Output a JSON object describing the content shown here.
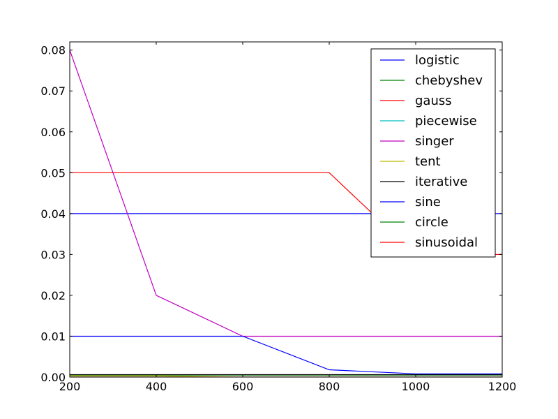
{
  "chart_data": {
    "type": "line",
    "title": "",
    "xlabel": "",
    "ylabel": "",
    "xlim": [
      200,
      1200
    ],
    "ylim": [
      0.0,
      0.082
    ],
    "x_ticks": [
      200,
      400,
      600,
      800,
      1000,
      1200
    ],
    "x_tick_labels": [
      "200",
      "400",
      "600",
      "800",
      "1000",
      "1200"
    ],
    "y_ticks": [
      0.0,
      0.01,
      0.02,
      0.03,
      0.04,
      0.05,
      0.06,
      0.07,
      0.08
    ],
    "y_tick_labels": [
      "0.00",
      "0.01",
      "0.02",
      "0.03",
      "0.04",
      "0.05",
      "0.06",
      "0.07",
      "0.08"
    ],
    "grid": false,
    "legend_position": "top-right",
    "x": [
      200,
      400,
      600,
      800,
      1000,
      1200
    ],
    "series": [
      {
        "name": "logistic",
        "color": "#0000ff",
        "values": [
          0.04,
          0.04,
          0.04,
          0.04,
          0.04,
          0.04
        ]
      },
      {
        "name": "chebyshev",
        "color": "#008000",
        "values": [
          0.0005,
          0.0005,
          0.0005,
          0.0005,
          0.0005,
          0.0005
        ]
      },
      {
        "name": "gauss",
        "color": "#ff0000",
        "values": [
          0.05,
          0.05,
          0.05,
          0.05,
          0.03,
          0.03
        ]
      },
      {
        "name": "piecewise",
        "color": "#00bfbf",
        "values": [
          0.0,
          0.0,
          0.0,
          0.0,
          0.0,
          0.0
        ]
      },
      {
        "name": "singer",
        "color": "#bf00bf",
        "values": [
          0.08,
          0.02,
          0.01,
          0.01,
          0.01,
          0.01
        ]
      },
      {
        "name": "tent",
        "color": "#bfbf00",
        "values": [
          0.0003,
          0.0003,
          0.0,
          0.0,
          0.0,
          0.0
        ]
      },
      {
        "name": "iterative",
        "color": "#000000",
        "values": [
          0.0006,
          0.0006,
          0.0006,
          0.0006,
          0.0006,
          0.0006
        ]
      },
      {
        "name": "sine",
        "color": "#0000ff",
        "values": [
          0.01,
          0.01,
          0.01,
          0.0018,
          0.0008,
          0.0008
        ]
      },
      {
        "name": "circle",
        "color": "#008000",
        "values": [
          0.0,
          0.0,
          0.0,
          0.0,
          0.0,
          0.0
        ]
      },
      {
        "name": "sinusoidal",
        "color": "#ff0000",
        "values": [
          0.0,
          0.0,
          0.0,
          0.0,
          0.0,
          0.0
        ]
      }
    ]
  }
}
